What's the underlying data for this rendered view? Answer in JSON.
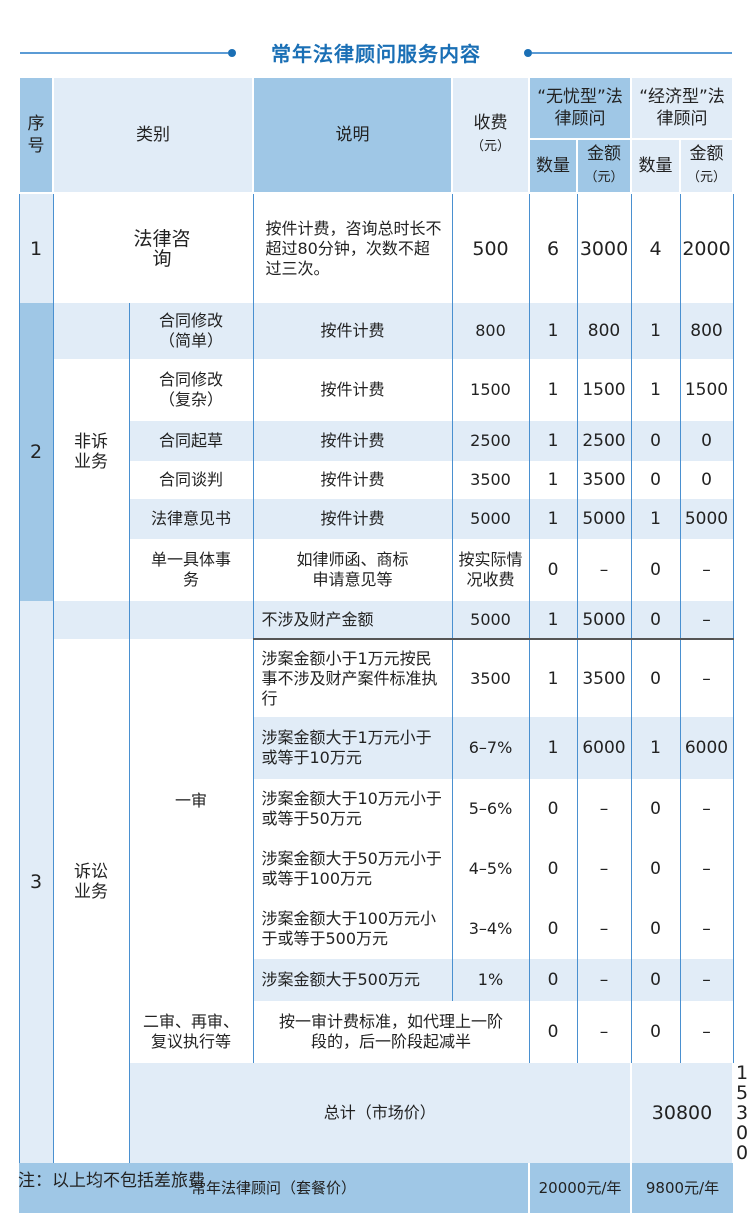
{
  "title": "常年法律顾问服务内容",
  "header": {
    "no": "序号",
    "category": "类别",
    "desc": "说明",
    "fee": "收费",
    "fee_unit": "（元）",
    "plan_a": "“无忧型”法律顾问",
    "plan_b": "“经济型”法律顾问",
    "qty": "数量",
    "amount": "金额",
    "amount_unit": "（元）"
  },
  "row1": {
    "no": "1",
    "category": "法律咨询",
    "desc": "按件计费，咨询总时长不超过80分钟，次数不超过三次。",
    "fee": "500",
    "a_qty": "6",
    "a_amt": "3000",
    "b_qty": "4",
    "b_amt": "2000"
  },
  "row2": {
    "no": "2",
    "category": "非诉业务",
    "items": [
      {
        "name": "合同修改（简单）",
        "desc": "按件计费",
        "fee": "800",
        "a_qty": "1",
        "a_amt": "800",
        "b_qty": "1",
        "b_amt": "800"
      },
      {
        "name": "合同修改（复杂）",
        "desc": "按件计费",
        "fee": "1500",
        "a_qty": "1",
        "a_amt": "1500",
        "b_qty": "1",
        "b_amt": "1500"
      },
      {
        "name": "合同起草",
        "desc": "按件计费",
        "fee": "2500",
        "a_qty": "1",
        "a_amt": "2500",
        "b_qty": "0",
        "b_amt": "0"
      },
      {
        "name": "合同谈判",
        "desc": "按件计费",
        "fee": "3500",
        "a_qty": "1",
        "a_amt": "3500",
        "b_qty": "0",
        "b_amt": "0"
      },
      {
        "name": "法律意见书",
        "desc": "按件计费",
        "fee": "5000",
        "a_qty": "1",
        "a_amt": "5000",
        "b_qty": "1",
        "b_amt": "5000"
      },
      {
        "name": "单一具体事务",
        "desc": "如律师函、商标申请意见等",
        "fee": "按实际情况收费",
        "a_qty": "0",
        "a_amt": "–",
        "b_qty": "0",
        "b_amt": "–"
      }
    ]
  },
  "row3": {
    "no": "3",
    "category": "诉讼业务",
    "first": "一审",
    "items": [
      {
        "desc": "不涉及财产金额",
        "fee": "5000",
        "a_qty": "1",
        "a_amt": "5000",
        "b_qty": "0",
        "b_amt": "–"
      },
      {
        "desc": "涉案金额小于1万元按民事不涉及财产案件标准执行",
        "fee": "3500",
        "a_qty": "1",
        "a_amt": "3500",
        "b_qty": "0",
        "b_amt": "–"
      },
      {
        "desc": "涉案金额大于1万元小于或等于10万元",
        "fee": "6–7%",
        "a_qty": "1",
        "a_amt": "6000",
        "b_qty": "1",
        "b_amt": "6000"
      },
      {
        "desc": "涉案金额大于10万元小于或等于50万元",
        "fee": "5–6%",
        "a_qty": "0",
        "a_amt": "–",
        "b_qty": "0",
        "b_amt": "–"
      },
      {
        "desc": "涉案金额大于50万元小于或等于100万元",
        "fee": "4–5%",
        "a_qty": "0",
        "a_amt": "–",
        "b_qty": "0",
        "b_amt": "–"
      },
      {
        "desc": "涉案金额大于100万元小于或等于500万元",
        "fee": "3–4%",
        "a_qty": "0",
        "a_amt": "–",
        "b_qty": "0",
        "b_amt": "–"
      },
      {
        "desc": "涉案金额大于500万元",
        "fee": "1%",
        "a_qty": "0",
        "a_amt": "–",
        "b_qty": "0",
        "b_amt": "–"
      }
    ],
    "later": {
      "name": "二审、再审、复议执行等",
      "desc": "按一审计费标准，如代理上一阶段的，后一阶段起减半",
      "a_qty": "0",
      "a_amt": "–",
      "b_qty": "0",
      "b_amt": "–"
    }
  },
  "total": {
    "label": "总计（市场价）",
    "a": "30800",
    "b": "15300"
  },
  "package": {
    "label": "常年法律顾问（套餐价）",
    "a": "20000元/年",
    "b": "9800元/年"
  },
  "note": "注：以上均不包括差旅费",
  "colors": {
    "accent": "#1a6fb5",
    "dark_cell": "#9fc7e6",
    "light_cell": "#e1ecf7"
  }
}
